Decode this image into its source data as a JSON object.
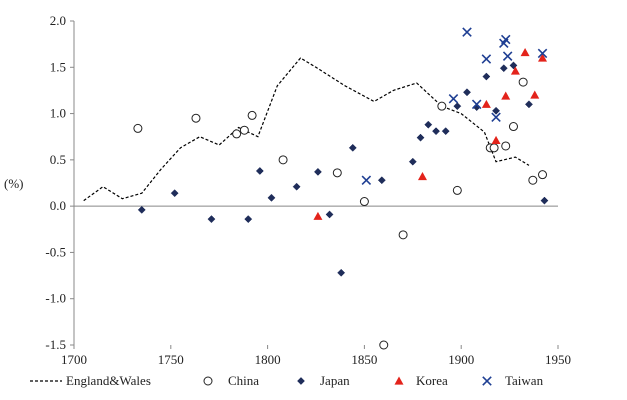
{
  "chart_data": {
    "type": "scatter",
    "title": "",
    "xlabel": "",
    "ylabel": "(%)",
    "xlim": [
      1700,
      1950
    ],
    "ylim": [
      -1.5,
      2.0
    ],
    "x_ticks": [
      "1700",
      "1750",
      "1800",
      "1850",
      "1900",
      "1950"
    ],
    "y_ticks": [
      "2.0",
      "1.5",
      "1.0",
      "0.5",
      "0.0",
      "-0.5",
      "-1.0",
      "-1.5"
    ],
    "grid": false,
    "legend_position": "bottom",
    "series": [
      {
        "name": "England&Wales",
        "marker": "dashed-line",
        "color": "#000000",
        "points": [
          [
            1705,
            0.06
          ],
          [
            1715,
            0.21
          ],
          [
            1725,
            0.08
          ],
          [
            1735,
            0.14
          ],
          [
            1745,
            0.4
          ],
          [
            1755,
            0.63
          ],
          [
            1765,
            0.75
          ],
          [
            1775,
            0.66
          ],
          [
            1785,
            0.85
          ],
          [
            1795,
            0.75
          ],
          [
            1805,
            1.3
          ],
          [
            1817,
            1.6
          ],
          [
            1825,
            1.5
          ],
          [
            1840,
            1.3
          ],
          [
            1855,
            1.13
          ],
          [
            1865,
            1.25
          ],
          [
            1877,
            1.33
          ],
          [
            1890,
            1.08
          ],
          [
            1900,
            1.0
          ],
          [
            1912,
            0.8
          ],
          [
            1918,
            0.48
          ],
          [
            1928,
            0.53
          ],
          [
            1935,
            0.44
          ]
        ]
      },
      {
        "name": "China",
        "marker": "open-circle",
        "color": "#000000",
        "points": [
          [
            1733,
            0.84
          ],
          [
            1763,
            0.95
          ],
          [
            1784,
            0.78
          ],
          [
            1788,
            0.82
          ],
          [
            1792,
            0.98
          ],
          [
            1808,
            0.5
          ],
          [
            1836,
            0.36
          ],
          [
            1850,
            0.05
          ],
          [
            1860,
            -1.5
          ],
          [
            1870,
            -0.31
          ],
          [
            1890,
            1.08
          ],
          [
            1898,
            0.17
          ],
          [
            1915,
            0.63
          ],
          [
            1917,
            0.63
          ],
          [
            1923,
            0.65
          ],
          [
            1927,
            0.86
          ],
          [
            1932,
            1.34
          ],
          [
            1937,
            0.28
          ],
          [
            1942,
            0.34
          ]
        ]
      },
      {
        "name": "Japan",
        "marker": "diamond",
        "color": "#1f2d5a",
        "points": [
          [
            1735,
            -0.04
          ],
          [
            1752,
            0.14
          ],
          [
            1771,
            -0.14
          ],
          [
            1790,
            -0.14
          ],
          [
            1796,
            0.38
          ],
          [
            1802,
            0.09
          ],
          [
            1815,
            0.21
          ],
          [
            1826,
            0.37
          ],
          [
            1832,
            -0.09
          ],
          [
            1838,
            -0.72
          ],
          [
            1844,
            0.63
          ],
          [
            1859,
            0.28
          ],
          [
            1875,
            0.48
          ],
          [
            1879,
            0.74
          ],
          [
            1883,
            0.88
          ],
          [
            1887,
            0.81
          ],
          [
            1892,
            0.81
          ],
          [
            1898,
            1.08
          ],
          [
            1903,
            1.23
          ],
          [
            1908,
            1.07
          ],
          [
            1913,
            1.4
          ],
          [
            1918,
            1.03
          ],
          [
            1922,
            1.49
          ],
          [
            1927,
            1.52
          ],
          [
            1935,
            1.1
          ],
          [
            1943,
            0.06
          ]
        ]
      },
      {
        "name": "Korea",
        "marker": "triangle",
        "color": "#e3231b",
        "points": [
          [
            1826,
            -0.11
          ],
          [
            1880,
            0.32
          ],
          [
            1913,
            1.1
          ],
          [
            1918,
            0.71
          ],
          [
            1923,
            1.19
          ],
          [
            1928,
            1.46
          ],
          [
            1933,
            1.66
          ],
          [
            1938,
            1.2
          ],
          [
            1942,
            1.6
          ]
        ]
      },
      {
        "name": "Taiwan",
        "marker": "x",
        "color": "#1f3f93",
        "points": [
          [
            1851,
            0.28
          ],
          [
            1896,
            1.16
          ],
          [
            1903,
            1.88
          ],
          [
            1908,
            1.1
          ],
          [
            1913,
            1.59
          ],
          [
            1918,
            0.96
          ],
          [
            1922,
            1.76
          ],
          [
            1923,
            1.8
          ],
          [
            1924,
            1.62
          ],
          [
            1942,
            1.65
          ]
        ]
      }
    ]
  }
}
